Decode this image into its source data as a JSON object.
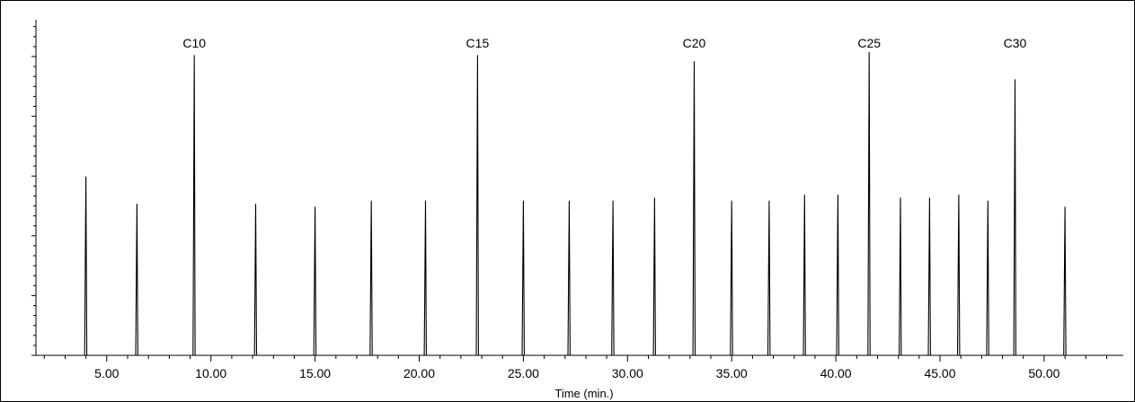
{
  "chart_data": {
    "type": "line",
    "title": "",
    "xlabel": "Time (min.)",
    "ylabel": "",
    "xlim": [
      1.6,
      53.8
    ],
    "ylim": [
      0,
      1.0
    ],
    "x_ticks": [
      5,
      10,
      15,
      20,
      25,
      30,
      35,
      40,
      45,
      50
    ],
    "x_tick_labels": [
      "5.00",
      "10.00",
      "15.00",
      "20.00",
      "25.00",
      "30.00",
      "35.00",
      "40.00",
      "45.00",
      "50.00"
    ],
    "grid": false,
    "legend": "none",
    "line_color": "#000000",
    "peaks": [
      {
        "rt": 4.0,
        "height": 0.59
      },
      {
        "rt": 6.45,
        "height": 0.5
      },
      {
        "rt": 9.2,
        "height": 0.99,
        "label": "C10"
      },
      {
        "rt": 12.15,
        "height": 0.5
      },
      {
        "rt": 15.0,
        "height": 0.49
      },
      {
        "rt": 17.7,
        "height": 0.51
      },
      {
        "rt": 20.3,
        "height": 0.51
      },
      {
        "rt": 22.8,
        "height": 0.99,
        "label": "C15"
      },
      {
        "rt": 25.0,
        "height": 0.51
      },
      {
        "rt": 27.2,
        "height": 0.51
      },
      {
        "rt": 29.3,
        "height": 0.51
      },
      {
        "rt": 31.3,
        "height": 0.52
      },
      {
        "rt": 33.2,
        "height": 0.97,
        "label": "C20"
      },
      {
        "rt": 35.0,
        "height": 0.51
      },
      {
        "rt": 36.8,
        "height": 0.51
      },
      {
        "rt": 38.5,
        "height": 0.53
      },
      {
        "rt": 40.1,
        "height": 0.53
      },
      {
        "rt": 41.6,
        "height": 1.0,
        "label": "C25"
      },
      {
        "rt": 43.1,
        "height": 0.52
      },
      {
        "rt": 44.5,
        "height": 0.52
      },
      {
        "rt": 45.9,
        "height": 0.53
      },
      {
        "rt": 47.3,
        "height": 0.51
      },
      {
        "rt": 48.6,
        "height": 0.91,
        "label": "C30"
      },
      {
        "rt": 51.0,
        "height": 0.49
      }
    ]
  }
}
